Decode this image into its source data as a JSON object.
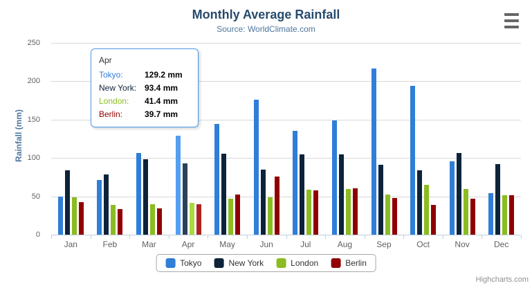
{
  "chart_data": {
    "type": "bar",
    "title": "Monthly Average Rainfall",
    "subtitle": "Source: WorldClimate.com",
    "categories": [
      "Jan",
      "Feb",
      "Mar",
      "Apr",
      "May",
      "Jun",
      "Jul",
      "Aug",
      "Sep",
      "Oct",
      "Nov",
      "Dec"
    ],
    "series": [
      {
        "name": "Tokyo",
        "color": "#2f7ed8",
        "hover_color": "#549ff1",
        "values": [
          49.9,
          71.5,
          106.4,
          129.2,
          144.0,
          176.0,
          135.6,
          148.5,
          216.4,
          194.1,
          95.6,
          54.4
        ]
      },
      {
        "name": "New York",
        "color": "#0d233a",
        "hover_color": "#2b4158",
        "values": [
          83.6,
          78.8,
          98.5,
          93.4,
          106.0,
          84.5,
          105.0,
          104.3,
          91.2,
          83.5,
          106.6,
          92.3
        ]
      },
      {
        "name": "London",
        "color": "#8bbc21",
        "hover_color": "#a9da3f",
        "values": [
          48.9,
          38.8,
          39.3,
          41.4,
          47.0,
          48.3,
          59.0,
          59.6,
          52.4,
          65.2,
          59.3,
          51.2
        ]
      },
      {
        "name": "Berlin",
        "color": "#910000",
        "hover_color": "#b02222",
        "values": [
          42.4,
          33.2,
          34.5,
          39.7,
          52.6,
          75.5,
          57.4,
          60.4,
          47.6,
          39.1,
          46.8,
          51.1
        ]
      }
    ],
    "xlabel": "",
    "ylabel": "Rainfall (mm)",
    "ylim": [
      0,
      250
    ],
    "ytick_step": 50,
    "grid": "horizontal",
    "legend_position": "bottom",
    "hovered_category": "Apr",
    "hovered_category_index": 3,
    "value_suffix": "mm"
  },
  "tooltip": {
    "header": "Apr",
    "border_color": "#4a9ae4",
    "rows": [
      {
        "label": "Tokyo:",
        "value": "129.2 mm"
      },
      {
        "label": "New York:",
        "value": "93.4 mm"
      },
      {
        "label": "London:",
        "value": "41.4 mm"
      },
      {
        "label": "Berlin:",
        "value": "39.7 mm"
      }
    ]
  },
  "credits": {
    "label": "Highcharts.com"
  }
}
